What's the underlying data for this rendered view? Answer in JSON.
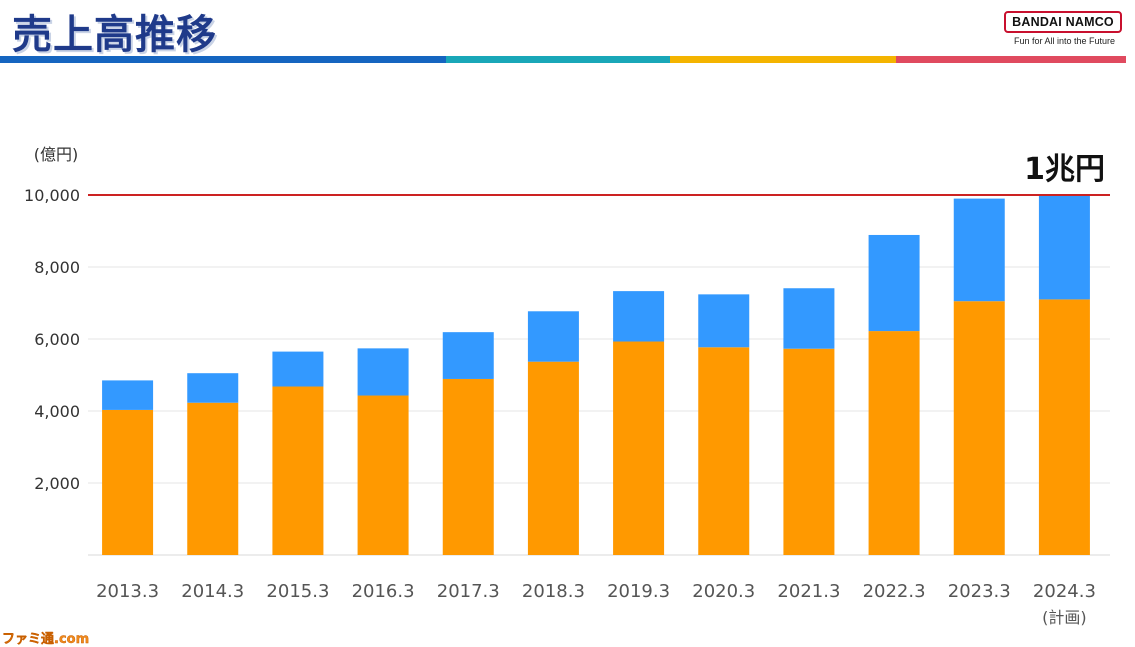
{
  "header": {
    "title": "売上高推移",
    "brand": "BANDAI NAMCO",
    "tagline": "Fun for All into the Future",
    "stripe_colors": [
      "#1565c0",
      "#19a7b8",
      "#f4b400",
      "#e04a5f"
    ]
  },
  "watermark": "ファミ通.com",
  "chart_data": {
    "type": "bar",
    "stacked": true,
    "title": "",
    "ylabel": "(億円)",
    "xlabel": "",
    "ylim": [
      0,
      10000
    ],
    "yticks": [
      "2,000",
      "4,000",
      "6,000",
      "8,000",
      "10,000"
    ],
    "ytick_values": [
      2000,
      4000,
      6000,
      8000,
      10000
    ],
    "grid": true,
    "categories": [
      "2013.3",
      "2014.3",
      "2015.3",
      "2016.3",
      "2017.3",
      "2018.3",
      "2019.3",
      "2020.3",
      "2021.3",
      "2022.3",
      "2023.3",
      "2024.3"
    ],
    "category_notes": [
      "",
      "",
      "",
      "",
      "",
      "",
      "",
      "",
      "",
      "",
      "",
      "(計画)"
    ],
    "series": [
      {
        "color": "#ff9900",
        "values": [
          4030,
          4230,
          4680,
          4430,
          4890,
          5370,
          5930,
          5770,
          5730,
          6220,
          7050,
          7100
        ]
      },
      {
        "color": "#3399ff",
        "values": [
          820,
          820,
          970,
          1310,
          1300,
          1400,
          1400,
          1470,
          1680,
          2670,
          2850,
          2900
        ]
      }
    ],
    "reference_line": {
      "value": 10000,
      "label": "1兆円",
      "color": "#cc2222"
    }
  }
}
